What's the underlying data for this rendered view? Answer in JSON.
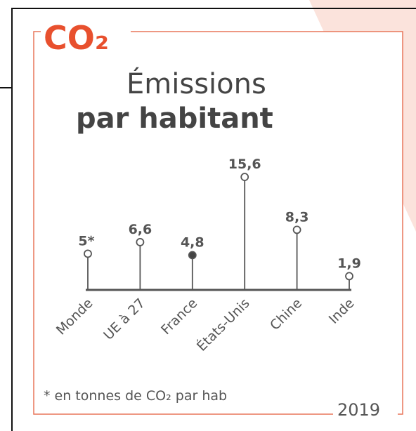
{
  "chart_data": {
    "type": "lollipop",
    "logo": "CO₂",
    "title": "Émissions",
    "subtitle": "par habitant",
    "categories": [
      "Monde",
      "UE à 27",
      "France",
      "États-Unis",
      "Chine",
      "Inde"
    ],
    "values": [
      5,
      6.6,
      4.8,
      15.6,
      8.3,
      1.9
    ],
    "value_labels": [
      "5*",
      "6,6",
      "4,8",
      "15,6",
      "8,3",
      "1,9"
    ],
    "marker_fills": [
      "#ffffff",
      "#ffffff",
      "#444444",
      "#ffffff",
      "#ffffff",
      "#ffffff"
    ],
    "color": "#555555",
    "ylim": [
      0,
      16
    ],
    "footnote": "* en tonnes de CO₂ par hab",
    "year": "2019"
  }
}
